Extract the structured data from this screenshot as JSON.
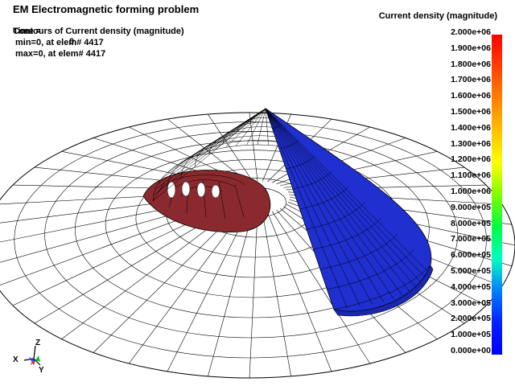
{
  "header": {
    "title": "EM Electromagnetic forming problem",
    "time_label": "Time =",
    "time_value": "0",
    "contour_title": "Contours of Current density (magnitude)",
    "min_text": "min=0, at elem# 4417",
    "max_text": "max=0, at elem# 4417"
  },
  "legend": {
    "title": "Current density (magnitude)",
    "ticks": [
      "2.000e+06",
      "1.900e+06",
      "1.800e+06",
      "1.700e+06",
      "1.600e+06",
      "1.500e+06",
      "1.400e+06",
      "1.300e+06",
      "1.200e+06",
      "1.100e+06",
      "1.000e+06",
      "9.000e+05",
      "8.000e+05",
      "7.000e+05",
      "6.000e+05",
      "5.000e+05",
      "4.000e+05",
      "3.000e+05",
      "2.000e+05",
      "1.000e+05",
      "0.000e+00"
    ],
    "colors": [
      "#ff0000",
      "#ff8000",
      "#ffff00",
      "#00ff00",
      "#00ffff",
      "#0000ff"
    ]
  },
  "triad": {
    "x": "X",
    "y": "Y",
    "z": "Z"
  },
  "colors": {
    "sheet": "#ffffff",
    "coil": "#8b2a2e",
    "cone_fill": "#1f2fd0",
    "mesh_line": "#000000"
  }
}
